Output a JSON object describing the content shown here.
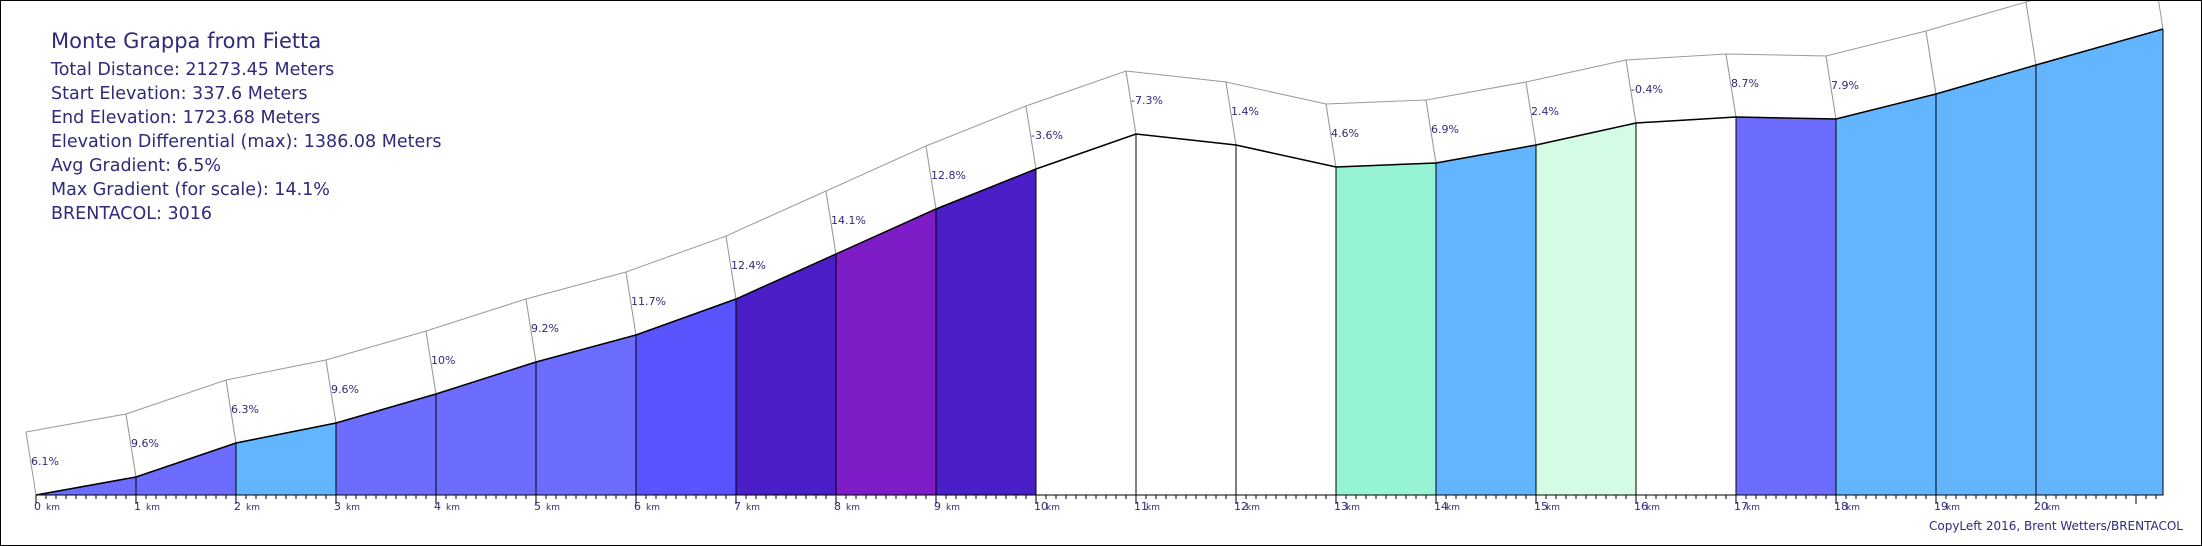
{
  "info": {
    "title": "Monte Grappa from Fietta",
    "total_distance": "Total Distance: 21273.45 Meters",
    "start_elevation": "Start Elevation: 337.6 Meters",
    "end_elevation": "End Elevation: 1723.68 Meters",
    "elevation_differential": "Elevation Differential (max): 1386.08 Meters",
    "avg_gradient": "Avg Gradient: 6.5%",
    "max_gradient": "Max Gradient (for scale): 14.1%",
    "brentacol": "BRENTACOL: 3016"
  },
  "copyright": "CopyLeft 2016, Brent Wetters/BRENTACOL",
  "chart_data": {
    "type": "area",
    "title": "Monte Grappa from Fietta",
    "xlabel": "",
    "ylabel": "",
    "x_unit": "km",
    "x_ticks": [
      "0",
      "1",
      "2",
      "3",
      "4",
      "5",
      "6",
      "7",
      "8",
      "9",
      "10",
      "11",
      "12",
      "13",
      "14",
      "15",
      "16",
      "17",
      "18",
      "19",
      "20"
    ],
    "xlim": [
      0,
      21.27
    ],
    "ylim": [
      337.6,
      1723.68
    ],
    "segment_boundaries_km": [
      0,
      1,
      2,
      3,
      4,
      5,
      6,
      7,
      8,
      9,
      10,
      11,
      12,
      13,
      14,
      15,
      16,
      17,
      18,
      19,
      20,
      21.27
    ],
    "gradients": [
      "6.1%",
      "9.6%",
      "6.3%",
      "9.6%",
      "10%",
      "9.2%",
      "11.7%",
      "12.4%",
      "14.1%",
      "12.8%",
      "-3.6%",
      "-7.3%",
      "1.4%",
      "4.6%",
      "6.9%",
      "2.4%",
      "-0.4%",
      "8.7%",
      "7.9%",
      "",
      ""
    ],
    "segment_colors": [
      "#6c6cff",
      "#6c6cff",
      "#64b5ff",
      "#6c6cff",
      "#6c6cff",
      "#6c6cff",
      "#5a54ff",
      "#4a1fc8",
      "#7e1dc8",
      "#4a1fc8",
      "#ffffff",
      "#ffffff",
      "#ffffff",
      "#96f4d4",
      "#64b5ff",
      "#d4fce4",
      "#ffffff",
      "#6c6cff",
      "#64b5ff",
      "#64b5ff",
      "#64b5ff"
    ]
  }
}
